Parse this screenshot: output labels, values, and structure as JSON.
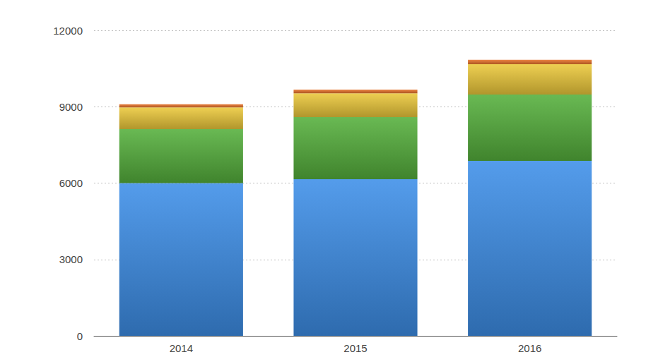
{
  "chart_data": {
    "type": "bar",
    "stacked": true,
    "grid": true,
    "categories": [
      "2014",
      "2015",
      "2016"
    ],
    "series": [
      {
        "color": "#3d8ee8",
        "values": [
          6000,
          6150,
          6870
        ]
      },
      {
        "color": "#55b03c",
        "values": [
          2120,
          2440,
          2610
        ]
      },
      {
        "color": "#ecc83a",
        "values": [
          850,
          940,
          1190
        ]
      },
      {
        "color": "#e8732a",
        "values": [
          130,
          140,
          170
        ]
      }
    ],
    "ylim": [
      0,
      12000
    ],
    "yticks": [
      0,
      3000,
      6000,
      9000,
      12000
    ]
  }
}
